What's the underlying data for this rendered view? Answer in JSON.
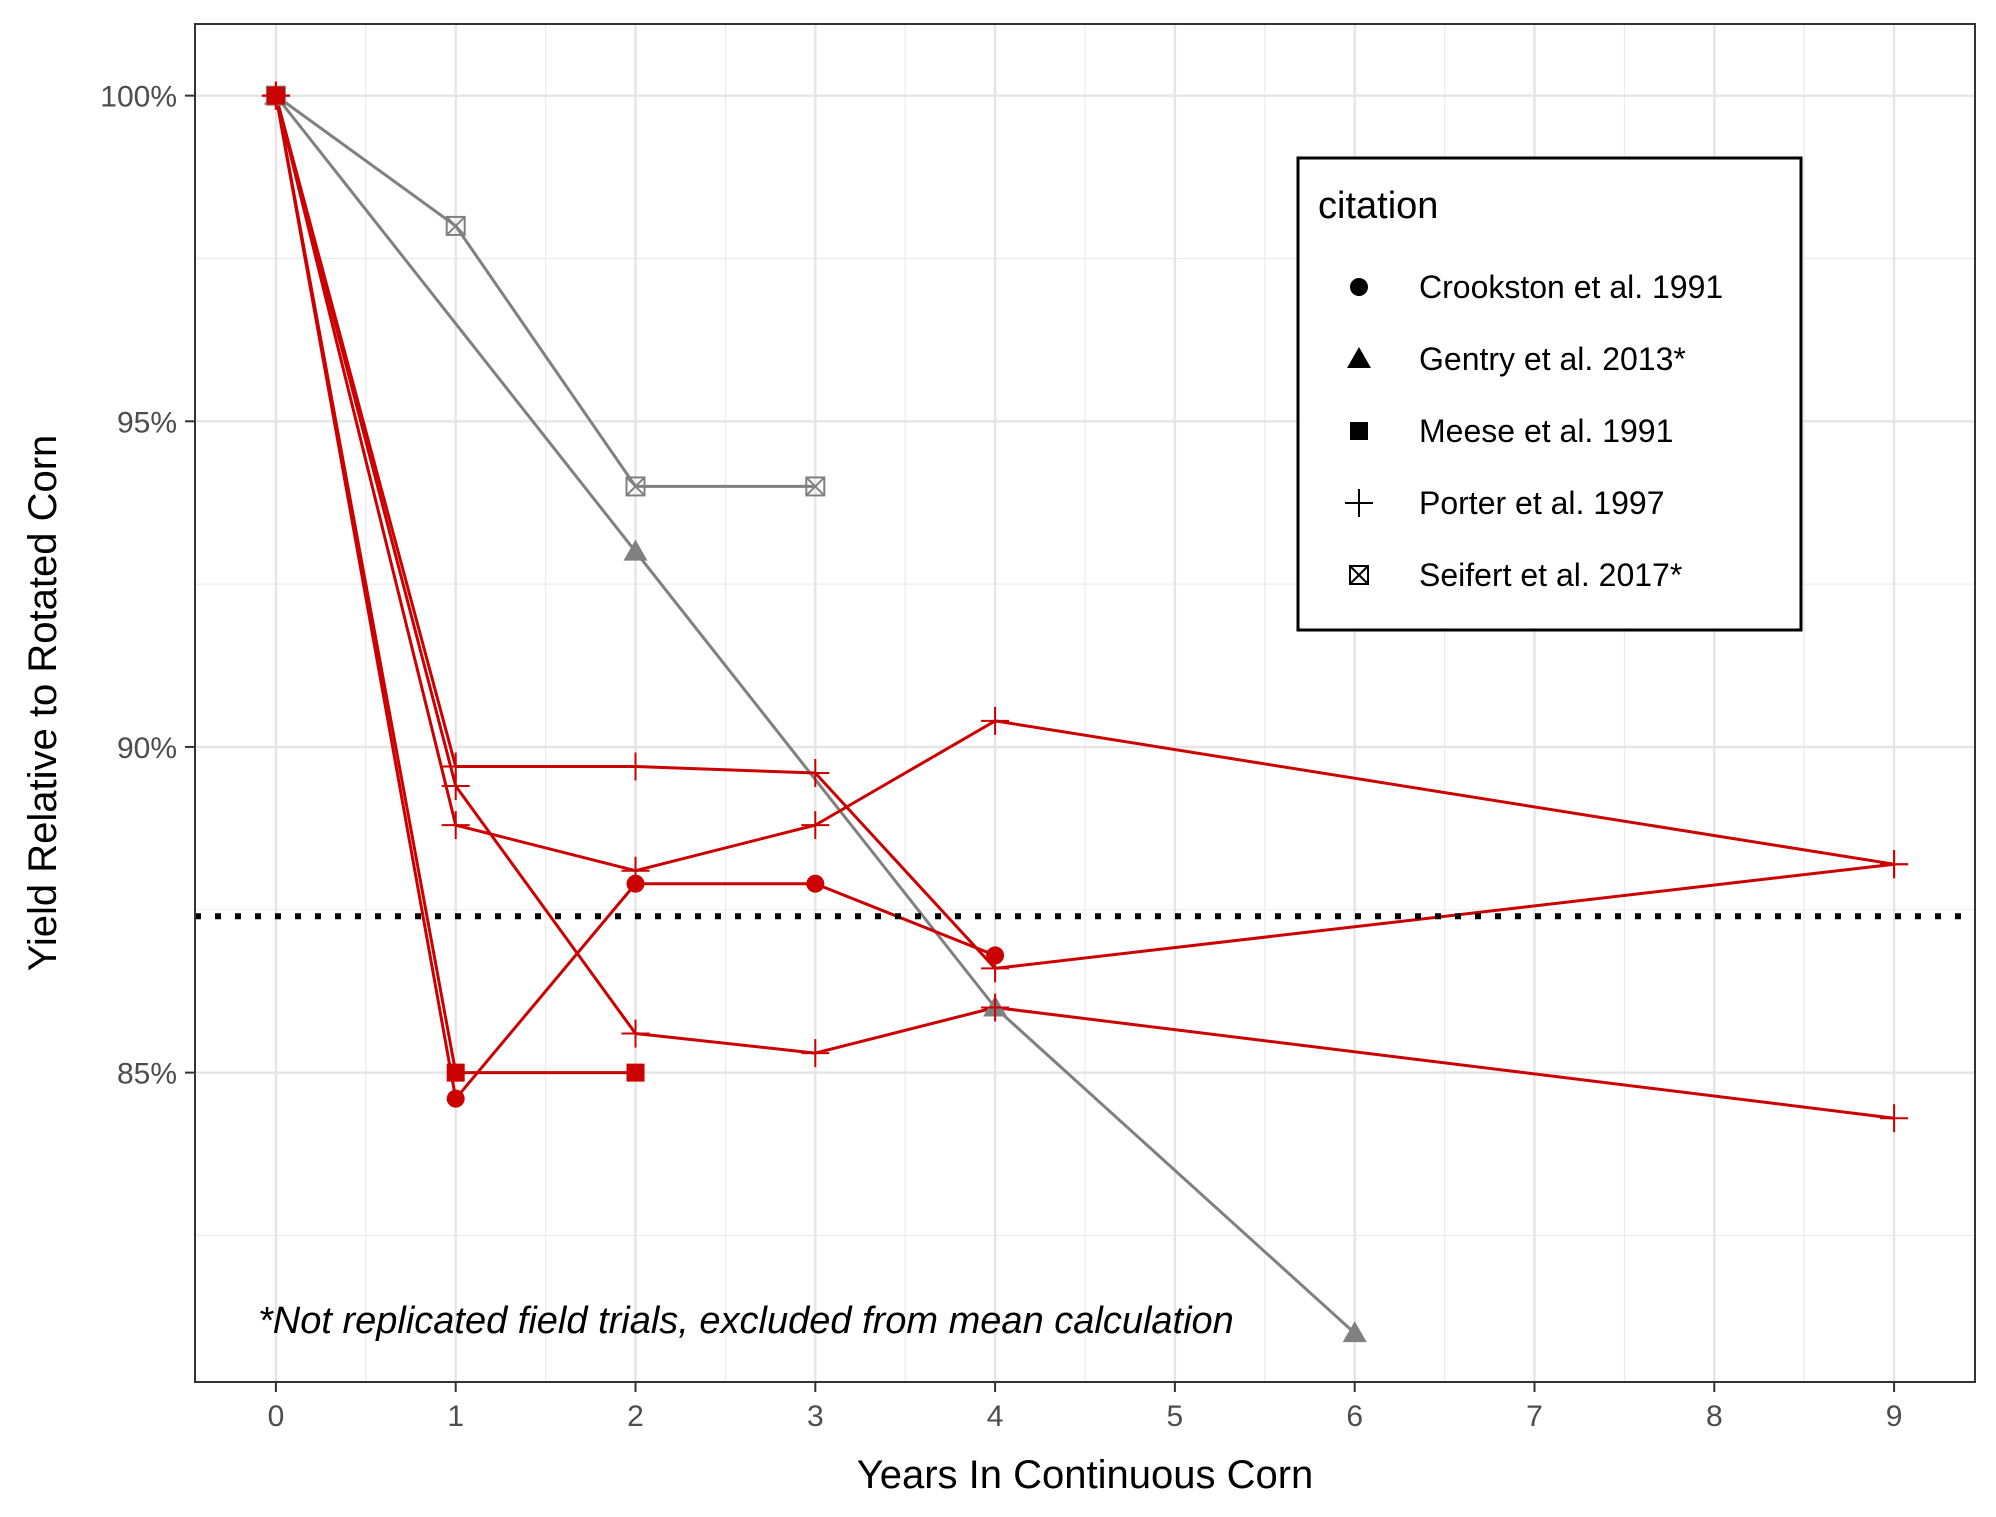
{
  "chart_data": {
    "type": "line",
    "xlabel": "Years In Continuous Corn",
    "ylabel": "Yield Relative to Rotated Corn",
    "xlim": [
      -0.45,
      9.45
    ],
    "ylim": [
      80.25,
      101.1
    ],
    "x_ticks": [
      0,
      1,
      2,
      3,
      4,
      5,
      6,
      7,
      8,
      9
    ],
    "x_tick_labels": [
      "0",
      "1",
      "2",
      "3",
      "4",
      "5",
      "6",
      "7",
      "8",
      "9"
    ],
    "y_ticks": [
      85,
      90,
      95,
      100
    ],
    "y_tick_labels": [
      "85%",
      "90%",
      "95%",
      "100%"
    ],
    "y_minor_ticks": [
      82.5,
      87.5,
      92.5,
      97.5
    ],
    "grid": true,
    "mean_line": {
      "y": 87.4,
      "style": "dotted",
      "color": "#000000"
    },
    "annotation": "*Not replicated field trials, excluded from mean calculation",
    "colors": {
      "replicated": "#cc0000",
      "not_replicated": "#808080"
    },
    "legend": {
      "title": "citation",
      "position": "top-right",
      "entries": [
        {
          "label": "Crookston et al. 1991",
          "marker": "circle"
        },
        {
          "label": "Gentry et al. 2013*",
          "marker": "triangle"
        },
        {
          "label": "Meese et al. 1991",
          "marker": "square"
        },
        {
          "label": "Porter et al. 1997",
          "marker": "plus"
        },
        {
          "label": "Seifert et al. 2017*",
          "marker": "boxx"
        }
      ]
    },
    "series": [
      {
        "citation": "Crookston et al. 1991",
        "marker": "circle",
        "color": "#cc0000",
        "x": [
          0,
          1,
          2,
          3,
          4
        ],
        "y": [
          100,
          84.6,
          87.9,
          87.9,
          86.8
        ]
      },
      {
        "citation": "Meese et al. 1991",
        "marker": "square",
        "color": "#cc0000",
        "x": [
          0,
          1,
          2
        ],
        "y": [
          100,
          85,
          85
        ]
      },
      {
        "citation": "Porter et al. 1997",
        "marker": "plus",
        "color": "#cc0000",
        "x": [
          0,
          1,
          2,
          3,
          4,
          9
        ],
        "y": [
          100,
          89.7,
          89.7,
          89.6,
          86.6,
          88.2
        ]
      },
      {
        "citation": "Porter et al. 1997",
        "marker": "plus",
        "color": "#cc0000",
        "x": [
          0,
          1,
          2,
          3,
          4,
          9
        ],
        "y": [
          100,
          88.8,
          88.1,
          88.8,
          90.4,
          88.2
        ]
      },
      {
        "citation": "Porter et al. 1997",
        "marker": "plus",
        "color": "#cc0000",
        "x": [
          0,
          1,
          2,
          3,
          4,
          9
        ],
        "y": [
          100,
          89.4,
          85.6,
          85.3,
          86.0,
          84.3
        ]
      },
      {
        "citation": "Gentry et al. 2013*",
        "marker": "triangle",
        "color": "#808080",
        "x": [
          0,
          2,
          4,
          6
        ],
        "y": [
          100,
          93,
          86,
          81
        ]
      },
      {
        "citation": "Seifert et al. 2017*",
        "marker": "boxx",
        "color": "#808080",
        "x": [
          0,
          1,
          2,
          3
        ],
        "y": [
          100,
          98,
          94,
          94
        ]
      }
    ]
  }
}
